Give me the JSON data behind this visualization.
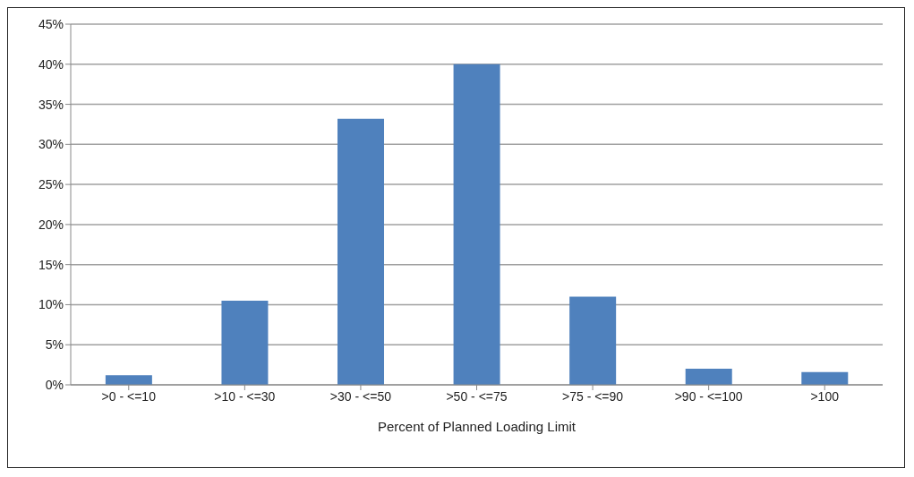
{
  "chart_data": {
    "type": "bar",
    "xlabel": "Percent of Planned Loading Limit",
    "categories": [
      ">0 - <=10",
      ">10 - <=30",
      ">30 - <=50",
      ">50 - <=75",
      ">75 - <=90",
      ">90 - <=100",
      ">100"
    ],
    "values": [
      1.2,
      10.5,
      33.2,
      40,
      11,
      2,
      1.6
    ],
    "color": "#4f81bd",
    "ylim": [
      0,
      45
    ],
    "yticks": [
      {
        "value": 0,
        "label": "0%"
      },
      {
        "value": 5,
        "label": "5%"
      },
      {
        "value": 10,
        "label": "10%"
      },
      {
        "value": 15,
        "label": "15%"
      },
      {
        "value": 20,
        "label": "20%"
      },
      {
        "value": 25,
        "label": "25%"
      },
      {
        "value": 30,
        "label": "30%"
      },
      {
        "value": 35,
        "label": "35%"
      },
      {
        "value": 40,
        "label": "40%"
      },
      {
        "value": 45,
        "label": "45%"
      }
    ],
    "grid": "y",
    "legend": false
  }
}
